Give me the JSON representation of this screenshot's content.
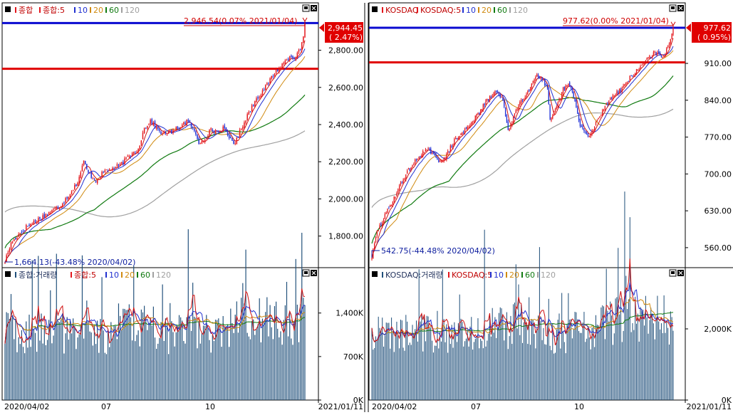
{
  "colors": {
    "up": "#e4161c",
    "down": "#1f2fd6",
    "ma5": "#d01010",
    "ma10": "#2030d0",
    "ma20": "#d08a10",
    "ma60": "#107a10",
    "ma120": "#a0a0a0",
    "volume_bar": "#1f4f7a",
    "hline_blue": "#0a0ad0",
    "hline_red": "#e00000"
  },
  "left": {
    "price_legend": {
      "series": "종합",
      "ma_prefix": "종합:5",
      "ma10": "10",
      "ma20": "20",
      "ma60": "60",
      "ma120": "120"
    },
    "volume_legend": {
      "series": "종합:거래량",
      "ma_prefix": "종합:5",
      "ma10": "10",
      "ma20": "20",
      "ma60": "60",
      "ma120": "120"
    },
    "high_annotation": "2,946.54(0.07% 2021/01/04)",
    "low_annotation": "1,664.13(-43.48% 2020/04/02)",
    "current_price": "2,944.45",
    "current_change": "( 2.47%)",
    "blue_line_value": 2946.5,
    "red_line_value": 2700,
    "price_ticks": [
      "2,800.00",
      "2,600.00",
      "2,400.00",
      "2,200.00",
      "2,000.00",
      "1,800.00"
    ],
    "price_tick_values": [
      2800,
      2600,
      2400,
      2200,
      2000,
      1800
    ],
    "price_range": [
      1630,
      3055
    ],
    "volume_ticks": [
      "1,400K",
      "700K",
      "0K"
    ],
    "volume_tick_values": [
      1400,
      700,
      0
    ],
    "volume_range": [
      0,
      2130
    ],
    "date_labels": [
      "2020/04/02",
      "07",
      "10",
      "2021/01/11"
    ]
  },
  "right": {
    "price_legend": {
      "series": "KOSDAQ",
      "ma_prefix": "KOSDAQ:5",
      "ma10": "10",
      "ma20": "20",
      "ma60": "60",
      "ma120": "120"
    },
    "volume_legend": {
      "series": "KOSDAQ:거래량",
      "ma_prefix": "KOSDAQ:5",
      "ma10": "10",
      "ma20": "20",
      "ma60": "60",
      "ma120": "120"
    },
    "high_annotation": "977.62(0.00% 2021/01/04)",
    "low_annotation": "542.75(-44.48% 2020/04/02)",
    "current_price": "977.62",
    "current_change": "( 0.95%)",
    "blue_line_value": 977.6,
    "red_line_value": 912,
    "price_ticks": [
      "910.00",
      "840.00",
      "770.00",
      "700.00",
      "630.00",
      "560.00"
    ],
    "price_tick_values": [
      910,
      840,
      770,
      700,
      630,
      560
    ],
    "price_range": [
      522,
      1025
    ],
    "volume_ticks": [
      "2,000K",
      "0K"
    ],
    "volume_tick_values": [
      2000,
      0
    ],
    "volume_range": [
      0,
      3720
    ],
    "date_labels": [
      "2020/04/02",
      "07",
      "10",
      "2021/01/11"
    ]
  },
  "chart_data": [
    {
      "type": "candlestick",
      "title": "종합",
      "x": [
        "2020/04/02",
        "07",
        "10",
        "2021/01/04"
      ],
      "y": [
        1664.13,
        2150,
        2350,
        2946.54
      ],
      "ylim": [
        1630,
        3055
      ],
      "moving_averages": [
        5,
        10,
        20,
        60,
        120
      ],
      "path": [
        [
          0,
          1665
        ],
        [
          4,
          1760
        ],
        [
          8,
          1800
        ],
        [
          14,
          1850
        ],
        [
          20,
          1880
        ],
        [
          24,
          1900
        ],
        [
          30,
          1930
        ],
        [
          36,
          1960
        ],
        [
          42,
          2020
        ],
        [
          48,
          2090
        ],
        [
          52,
          2200
        ],
        [
          55,
          2140
        ],
        [
          60,
          2100
        ],
        [
          66,
          2150
        ],
        [
          70,
          2160
        ],
        [
          76,
          2180
        ],
        [
          82,
          2230
        ],
        [
          88,
          2270
        ],
        [
          92,
          2380
        ],
        [
          96,
          2420
        ],
        [
          100,
          2380
        ],
        [
          104,
          2350
        ],
        [
          110,
          2360
        ],
        [
          114,
          2380
        ],
        [
          120,
          2420
        ],
        [
          124,
          2380
        ],
        [
          128,
          2300
        ],
        [
          132,
          2330
        ],
        [
          136,
          2370
        ],
        [
          140,
          2360
        ],
        [
          144,
          2380
        ],
        [
          148,
          2330
        ],
        [
          152,
          2300
        ],
        [
          156,
          2380
        ],
        [
          160,
          2450
        ],
        [
          166,
          2540
        ],
        [
          172,
          2600
        ],
        [
          178,
          2680
        ],
        [
          184,
          2730
        ],
        [
          188,
          2770
        ],
        [
          192,
          2760
        ],
        [
          194,
          2790
        ],
        [
          196,
          2830
        ],
        [
          197,
          2875
        ],
        [
          198,
          2944
        ]
      ]
    },
    {
      "type": "bar",
      "title": "종합:거래량",
      "x": [
        "2020/04/02",
        "07",
        "10",
        "2021/01/11"
      ],
      "ylim": [
        0,
        2130
      ],
      "base": 1050
    },
    {
      "type": "candlestick",
      "title": "KOSDAQ",
      "x": [
        "2020/04/02",
        "07",
        "10",
        "2021/01/04"
      ],
      "y": [
        542.75,
        740,
        900,
        977.62
      ],
      "ylim": [
        522,
        1025
      ],
      "moving_averages": [
        5,
        10,
        20,
        60,
        120
      ],
      "path": [
        [
          0,
          543
        ],
        [
          4,
          590
        ],
        [
          8,
          610
        ],
        [
          14,
          640
        ],
        [
          20,
          670
        ],
        [
          26,
          700
        ],
        [
          32,
          720
        ],
        [
          38,
          740
        ],
        [
          44,
          745
        ],
        [
          50,
          725
        ],
        [
          56,
          730
        ],
        [
          62,
          760
        ],
        [
          70,
          780
        ],
        [
          80,
          810
        ],
        [
          88,
          840
        ],
        [
          96,
          858
        ],
        [
          100,
          840
        ],
        [
          104,
          780
        ],
        [
          108,
          810
        ],
        [
          114,
          840
        ],
        [
          120,
          860
        ],
        [
          126,
          890
        ],
        [
          130,
          880
        ],
        [
          134,
          860
        ],
        [
          136,
          800
        ],
        [
          140,
          820
        ],
        [
          146,
          860
        ],
        [
          150,
          870
        ],
        [
          154,
          850
        ],
        [
          158,
          800
        ],
        [
          162,
          780
        ],
        [
          166,
          770
        ],
        [
          170,
          790
        ],
        [
          176,
          820
        ],
        [
          184,
          850
        ],
        [
          190,
          860
        ],
        [
          196,
          880
        ],
        [
          204,
          900
        ],
        [
          210,
          920
        ],
        [
          216,
          930
        ],
        [
          222,
          920
        ],
        [
          226,
          940
        ],
        [
          228,
          960
        ],
        [
          230,
          978
        ]
      ]
    },
    {
      "type": "bar",
      "title": "KOSDAQ:거래량",
      "x": [
        "2020/04/02",
        "07",
        "10",
        "2021/01/11"
      ],
      "ylim": [
        0,
        3720
      ],
      "base": 1850
    }
  ]
}
